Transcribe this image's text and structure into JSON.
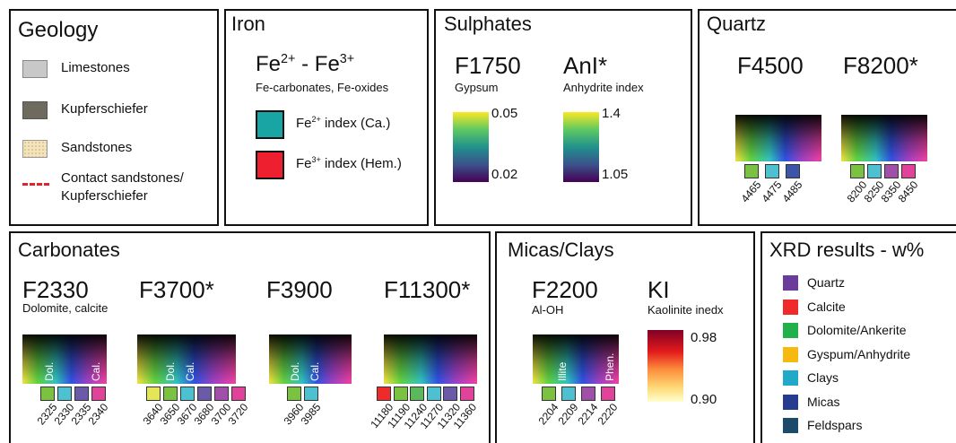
{
  "geology": {
    "title": "Geology",
    "items": [
      "Limestones",
      "Kupferschiefer",
      "Sandstones"
    ],
    "contact": [
      "Contact sandstones/",
      "Kupferschiefer"
    ]
  },
  "iron": {
    "title": "Iron",
    "formula": [
      "Fe",
      "2+",
      "-",
      "Fe",
      "3+"
    ],
    "subtitle": "Fe-carbonates, Fe-oxides",
    "items": [
      {
        "ion": "Fe",
        "charge": "2+",
        "label": "index (Ca.)"
      },
      {
        "ion": "Fe",
        "charge": "3+",
        "label": "index (Hem.)"
      }
    ]
  },
  "sulphates": {
    "title": "Sulphates",
    "indices": [
      {
        "code": "F1750",
        "subtitle": "Gypsum",
        "max": "0.05",
        "min": "0.02"
      },
      {
        "code": "AnI*",
        "subtitle": "Anhydrite index",
        "max": "1.4",
        "min": "1.05"
      }
    ]
  },
  "quartz": {
    "title": "Quartz",
    "indices": [
      {
        "code": "F4500",
        "swatches": [
          {
            "label": "4465",
            "color": "#7bc142"
          },
          {
            "label": "4475",
            "color": "#4ec0cf"
          },
          {
            "label": "4485",
            "color": "#3d55a8"
          }
        ]
      },
      {
        "code": "F8200*",
        "swatches": [
          {
            "label": "8200",
            "color": "#7bc142"
          },
          {
            "label": "8250",
            "color": "#4ec0cf"
          },
          {
            "label": "8350",
            "color": "#a050a8"
          },
          {
            "label": "8450",
            "color": "#e0449a"
          }
        ]
      }
    ]
  },
  "carbonates": {
    "title": "Carbonates",
    "indices": [
      {
        "code": "F2330",
        "subtitle": "Dolomite, calcite",
        "marks": [
          "Dol.",
          "Cal."
        ],
        "swatches": [
          {
            "label": "2325",
            "color": "#7bc142"
          },
          {
            "label": "2330",
            "color": "#4ec0cf"
          },
          {
            "label": "2335",
            "color": "#6a5aa8"
          },
          {
            "label": "2340",
            "color": "#e0449a"
          }
        ]
      },
      {
        "code": "F3700*",
        "marks": [
          "Dol.",
          "Cal."
        ],
        "swatches": [
          {
            "label": "3640",
            "color": "#e5e55a"
          },
          {
            "label": "3650",
            "color": "#7bc142"
          },
          {
            "label": "3670",
            "color": "#4ec0cf"
          },
          {
            "label": "3680",
            "color": "#6a5aa8"
          },
          {
            "label": "3700",
            "color": "#a050a8"
          },
          {
            "label": "3720",
            "color": "#e0449a"
          }
        ]
      },
      {
        "code": "F3900",
        "marks": [
          "Dol.",
          "Cal."
        ],
        "swatches": [
          {
            "label": "3960",
            "color": "#7bc142"
          },
          {
            "label": "3985",
            "color": "#4ec0cf"
          }
        ]
      },
      {
        "code": "F11300*",
        "swatches": [
          {
            "label": "11180",
            "color": "#ee2a2a"
          },
          {
            "label": "11190",
            "color": "#7bc142"
          },
          {
            "label": "11240",
            "color": "#5cb85c"
          },
          {
            "label": "11270",
            "color": "#4ec0cf"
          },
          {
            "label": "11320",
            "color": "#6a5aa8"
          },
          {
            "label": "11360",
            "color": "#e0449a"
          }
        ]
      }
    ]
  },
  "micas": {
    "title": "Micas/Clays",
    "indices": [
      {
        "code": "F2200",
        "subtitle": "Al-OH",
        "marks": [
          "Illite",
          "Phen."
        ],
        "swatches": [
          {
            "label": "2204",
            "color": "#7bc142"
          },
          {
            "label": "2209",
            "color": "#4ec0cf"
          },
          {
            "label": "2214",
            "color": "#a050a8"
          },
          {
            "label": "2220",
            "color": "#e0449a"
          }
        ]
      },
      {
        "code": "KI",
        "subtitle": "Kaolinite inedx",
        "max": "0.98",
        "min": "0.90"
      }
    ]
  },
  "xrd": {
    "title": "XRD results - w%",
    "items": [
      {
        "label": "Quartz",
        "color": "#6a3d9a"
      },
      {
        "label": "Calcite",
        "color": "#ee2a2a"
      },
      {
        "label": "Dolomite/Ankerite",
        "color": "#22b04b"
      },
      {
        "label": "Gyspum/Anhydrite",
        "color": "#f5b90f"
      },
      {
        "label": "Clays",
        "color": "#22a8c8"
      },
      {
        "label": "Micas",
        "color": "#263d8f"
      },
      {
        "label": "Feldspars",
        "color": "#1c4a6a"
      }
    ]
  }
}
